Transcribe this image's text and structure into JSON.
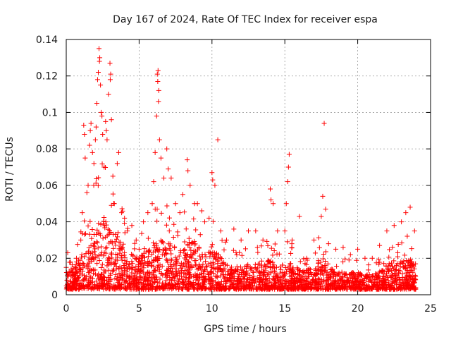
{
  "chart_data": {
    "type": "scatter",
    "title": "Day 167 of 2024, Rate Of TEC Index for receiver espa",
    "xlabel": "GPS time / hours",
    "ylabel": "ROTI / TECUs",
    "xlim": [
      0,
      25
    ],
    "ylim": [
      0,
      0.14
    ],
    "xticks": [
      0,
      5,
      10,
      15,
      20,
      25
    ],
    "xtick_labels": [
      "0",
      "5",
      "10",
      "15",
      "20",
      "25"
    ],
    "yticks": [
      0,
      0.02,
      0.04,
      0.06,
      0.08,
      0.1,
      0.12,
      0.14
    ],
    "ytick_labels": [
      "0",
      "0.02",
      "0.04",
      "0.06",
      "0.08",
      "0.1",
      "0.12",
      "0.14"
    ],
    "grid": true,
    "marker": "plus",
    "series": [
      {
        "name": "ROTI",
        "color": "#ff0000",
        "points": [
          [
            0.0,
            0.015
          ],
          [
            0.1,
            0.023
          ],
          [
            0.2,
            0.012
          ],
          [
            0.3,
            0.018
          ],
          [
            0.5,
            0.011
          ],
          [
            0.7,
            0.02
          ],
          [
            0.9,
            0.016
          ],
          [
            1.0,
            0.03
          ],
          [
            1.1,
            0.045
          ],
          [
            1.2,
            0.093
          ],
          [
            1.3,
            0.075
          ],
          [
            1.5,
            0.06
          ],
          [
            1.6,
            0.082
          ],
          [
            1.7,
            0.094
          ],
          [
            1.8,
            0.078
          ],
          [
            1.9,
            0.072
          ],
          [
            2.0,
            0.085
          ],
          [
            2.1,
            0.105
          ],
          [
            2.2,
            0.122
          ],
          [
            2.25,
            0.135
          ],
          [
            2.3,
            0.13
          ],
          [
            2.35,
            0.115
          ],
          [
            2.4,
            0.1
          ],
          [
            2.5,
            0.088
          ],
          [
            2.6,
            0.07
          ],
          [
            2.7,
            0.095
          ],
          [
            2.8,
            0.085
          ],
          [
            2.9,
            0.11
          ],
          [
            3.0,
            0.127
          ],
          [
            3.05,
            0.121
          ],
          [
            3.1,
            0.096
          ],
          [
            3.2,
            0.065
          ],
          [
            3.3,
            0.05
          ],
          [
            3.5,
            0.072
          ],
          [
            3.6,
            0.078
          ],
          [
            3.8,
            0.045
          ],
          [
            4.0,
            0.042
          ],
          [
            4.2,
            0.035
          ],
          [
            4.5,
            0.038
          ],
          [
            4.8,
            0.03
          ],
          [
            5.0,
            0.025
          ],
          [
            5.3,
            0.04
          ],
          [
            5.6,
            0.045
          ],
          [
            5.9,
            0.05
          ],
          [
            6.0,
            0.062
          ],
          [
            6.1,
            0.078
          ],
          [
            6.2,
            0.098
          ],
          [
            6.25,
            0.121
          ],
          [
            6.3,
            0.123
          ],
          [
            6.35,
            0.112
          ],
          [
            6.4,
            0.085
          ],
          [
            6.5,
            0.075
          ],
          [
            6.7,
            0.064
          ],
          [
            6.9,
            0.08
          ],
          [
            7.0,
            0.069
          ],
          [
            7.2,
            0.064
          ],
          [
            7.5,
            0.05
          ],
          [
            7.8,
            0.045
          ],
          [
            8.0,
            0.055
          ],
          [
            8.3,
            0.074
          ],
          [
            8.5,
            0.06
          ],
          [
            8.8,
            0.05
          ],
          [
            9.0,
            0.05
          ],
          [
            9.3,
            0.046
          ],
          [
            9.5,
            0.04
          ],
          [
            9.8,
            0.042
          ],
          [
            10.0,
            0.067
          ],
          [
            10.2,
            0.06
          ],
          [
            10.4,
            0.085
          ],
          [
            10.6,
            0.035
          ],
          [
            11.0,
            0.03
          ],
          [
            11.5,
            0.036
          ],
          [
            12.0,
            0.03
          ],
          [
            12.5,
            0.035
          ],
          [
            13.0,
            0.035
          ],
          [
            13.5,
            0.03
          ],
          [
            14.0,
            0.058
          ],
          [
            14.2,
            0.05
          ],
          [
            14.5,
            0.035
          ],
          [
            15.0,
            0.035
          ],
          [
            15.1,
            0.05
          ],
          [
            15.2,
            0.062
          ],
          [
            15.3,
            0.077
          ],
          [
            15.5,
            0.03
          ],
          [
            16.0,
            0.043
          ],
          [
            16.5,
            0.02
          ],
          [
            17.0,
            0.03
          ],
          [
            17.5,
            0.043
          ],
          [
            17.6,
            0.054
          ],
          [
            17.7,
            0.094
          ],
          [
            17.8,
            0.047
          ],
          [
            18.0,
            0.028
          ],
          [
            18.5,
            0.025
          ],
          [
            19.0,
            0.026
          ],
          [
            19.5,
            0.022
          ],
          [
            20.0,
            0.025
          ],
          [
            20.5,
            0.02
          ],
          [
            21.0,
            0.02
          ],
          [
            21.5,
            0.027
          ],
          [
            22.0,
            0.035
          ],
          [
            22.5,
            0.038
          ],
          [
            23.0,
            0.04
          ],
          [
            23.3,
            0.045
          ],
          [
            23.6,
            0.048
          ],
          [
            23.9,
            0.035
          ],
          [
            0.05,
            0.008
          ],
          [
            0.4,
            0.006
          ],
          [
            0.8,
            0.009
          ],
          [
            1.4,
            0.01
          ],
          [
            2.6,
            0.012
          ],
          [
            3.4,
            0.011
          ],
          [
            4.3,
            0.009
          ],
          [
            5.4,
            0.01
          ],
          [
            6.8,
            0.011
          ],
          [
            7.6,
            0.012
          ],
          [
            8.6,
            0.01
          ],
          [
            9.6,
            0.009
          ],
          [
            10.8,
            0.011
          ],
          [
            11.8,
            0.01
          ],
          [
            12.8,
            0.009
          ],
          [
            13.8,
            0.011
          ],
          [
            14.8,
            0.01
          ],
          [
            15.8,
            0.009
          ],
          [
            16.8,
            0.011
          ],
          [
            17.2,
            0.012
          ],
          [
            18.8,
            0.01
          ],
          [
            19.8,
            0.009
          ],
          [
            20.8,
            0.011
          ],
          [
            21.8,
            0.01
          ],
          [
            22.8,
            0.012
          ],
          [
            23.8,
            0.009
          ],
          [
            2.15,
            0.118
          ],
          [
            2.28,
            0.128
          ],
          [
            2.45,
            0.098
          ],
          [
            3.02,
            0.118
          ],
          [
            6.28,
            0.117
          ],
          [
            6.33,
            0.106
          ],
          [
            1.25,
            0.088
          ],
          [
            1.65,
            0.09
          ],
          [
            2.05,
            0.092
          ],
          [
            2.75,
            0.09
          ],
          [
            8.35,
            0.068
          ],
          [
            10.05,
            0.063
          ],
          [
            14.05,
            0.052
          ],
          [
            15.25,
            0.07
          ]
        ],
        "envelope": [
          [
            0.0,
            0.022
          ],
          [
            0.5,
            0.024
          ],
          [
            1.0,
            0.04
          ],
          [
            1.5,
            0.06
          ],
          [
            2.0,
            0.07
          ],
          [
            2.5,
            0.075
          ],
          [
            3.0,
            0.07
          ],
          [
            3.5,
            0.055
          ],
          [
            4.0,
            0.045
          ],
          [
            4.5,
            0.04
          ],
          [
            5.0,
            0.035
          ],
          [
            5.5,
            0.042
          ],
          [
            6.0,
            0.05
          ],
          [
            6.5,
            0.055
          ],
          [
            7.0,
            0.05
          ],
          [
            7.5,
            0.045
          ],
          [
            8.0,
            0.05
          ],
          [
            8.5,
            0.055
          ],
          [
            9.0,
            0.048
          ],
          [
            9.5,
            0.04
          ],
          [
            10.0,
            0.045
          ],
          [
            10.5,
            0.035
          ],
          [
            11.0,
            0.03
          ],
          [
            11.5,
            0.028
          ],
          [
            12.0,
            0.025
          ],
          [
            12.5,
            0.028
          ],
          [
            13.0,
            0.03
          ],
          [
            13.5,
            0.028
          ],
          [
            14.0,
            0.035
          ],
          [
            14.5,
            0.03
          ],
          [
            15.0,
            0.03
          ],
          [
            15.5,
            0.028
          ],
          [
            16.0,
            0.025
          ],
          [
            16.5,
            0.022
          ],
          [
            17.0,
            0.028
          ],
          [
            17.5,
            0.035
          ],
          [
            18.0,
            0.028
          ],
          [
            18.5,
            0.022
          ],
          [
            19.0,
            0.02
          ],
          [
            19.5,
            0.02
          ],
          [
            20.0,
            0.02
          ],
          [
            20.5,
            0.018
          ],
          [
            21.0,
            0.018
          ],
          [
            21.5,
            0.022
          ],
          [
            22.0,
            0.028
          ],
          [
            22.5,
            0.03
          ],
          [
            23.0,
            0.032
          ],
          [
            23.5,
            0.035
          ],
          [
            24.0,
            0.025
          ]
        ],
        "baseline_min": 0.003
      }
    ]
  }
}
